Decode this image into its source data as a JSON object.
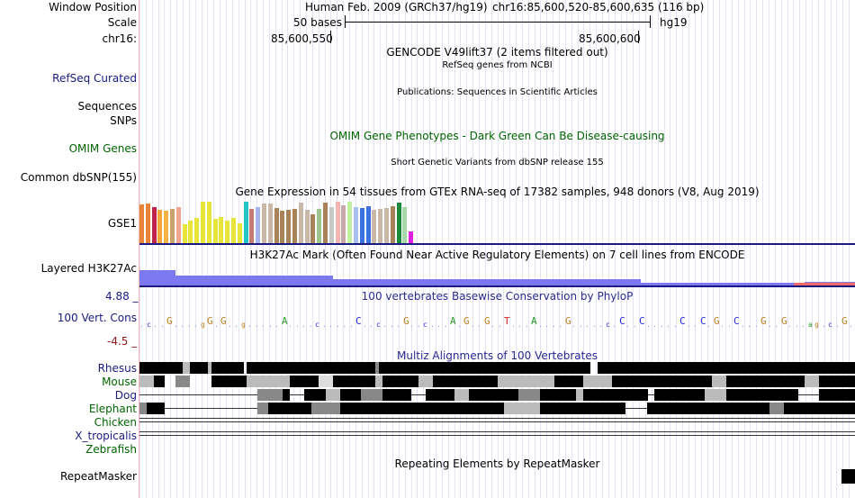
{
  "header": {
    "window_position_label": "Window Position",
    "scale_label": "Scale",
    "chrom_label": "chr16:",
    "assembly": "Human Feb. 2009 (GRCh37/hg19)",
    "position": "chr16:85,600,520-85,600,635 (116 bp)",
    "scale_text": "50 bases",
    "db": "hg19",
    "coord_left": "85,600,550",
    "coord_right": "85,600,600"
  },
  "tracks": {
    "gencode_title": "GENCODE V49lift37 (2 items filtered out)",
    "refseq_label": "RefSeq Curated",
    "refseq_title": "RefSeq genes from NCBI",
    "publications_title": "Publications: Sequences in Scientific Articles",
    "sequences_label": "Sequences",
    "snps_label": "SNPs",
    "omim_label": "OMIM Genes",
    "omim_title": "OMIM Gene Phenotypes - Dark Green Can Be Disease-causing",
    "dbsnp_title": "Short Genetic Variants from dbSNP release 155",
    "dbsnp_label": "Common dbSNP(155)",
    "gtex_title": "Gene Expression in 54 tissues from GTEx RNA-seq of 17382 samples, 948 donors (V8, Aug 2019)",
    "gtex_label": "GSE1",
    "h3k27ac_title": "H3K27Ac Mark (Often Found Near Active Regulatory Elements) on 7 cell lines from ENCODE",
    "h3k27ac_label": "Layered H3K27Ac",
    "cons_title": "100 vertebrates Basewise Conservation by PhyloP",
    "cons_label": "100 Vert. Cons",
    "cons_max": "4.88 _",
    "cons_min": "-4.5 _",
    "multiz_title": "Multiz Alignments of 100 Vertebrates",
    "species": [
      "Rhesus",
      "Mouse",
      "Dog",
      "Elephant",
      "Chicken",
      "X_tropicalis",
      "Zebrafish"
    ],
    "repeat_title": "Repeating Elements by RepeatMasker",
    "repeat_label": "RepeatMasker"
  },
  "colors": {
    "blue_label": "#1a1a80",
    "green_label": "#006400",
    "omim_green": "#006400",
    "h3k27ac_fill": "#7b78f0",
    "track_rule": "#1a1a80"
  },
  "gtex_bars": [
    {
      "value": 0.93,
      "color": "#e8843a"
    },
    {
      "value": 0.95,
      "color": "#e8843a"
    },
    {
      "value": 0.88,
      "color": "#c0224c"
    },
    {
      "value": 0.8,
      "color": "#f3a73b"
    },
    {
      "value": 0.78,
      "color": "#f5b344"
    },
    {
      "value": 0.83,
      "color": "#c9a36e"
    },
    {
      "value": 0.88,
      "color": "#f2a48e"
    },
    {
      "value": 0.45,
      "color": "#e8e53a"
    },
    {
      "value": 0.55,
      "color": "#e8e53a"
    },
    {
      "value": 0.6,
      "color": "#e8e53a"
    },
    {
      "value": 1.0,
      "color": "#e8e53a"
    },
    {
      "value": 1.0,
      "color": "#e8e53a"
    },
    {
      "value": 0.58,
      "color": "#e8e53a"
    },
    {
      "value": 0.62,
      "color": "#e8e53a"
    },
    {
      "value": 0.55,
      "color": "#e8e53a"
    },
    {
      "value": 0.6,
      "color": "#e8e53a"
    },
    {
      "value": 0.48,
      "color": "#e8e53a"
    },
    {
      "value": 1.0,
      "color": "#20c4c4"
    },
    {
      "value": 0.82,
      "color": "#c47a70"
    },
    {
      "value": 0.88,
      "color": "#a8b4f0"
    },
    {
      "value": 0.95,
      "color": "#c9b8a8"
    },
    {
      "value": 0.95,
      "color": "#c9b8a8"
    },
    {
      "value": 0.85,
      "color": "#a8835a"
    },
    {
      "value": 0.78,
      "color": "#a8835a"
    },
    {
      "value": 0.8,
      "color": "#a8835a"
    },
    {
      "value": 0.82,
      "color": "#a8835a"
    },
    {
      "value": 0.98,
      "color": "#c9b8a8"
    },
    {
      "value": 0.8,
      "color": "#c9b8a8"
    },
    {
      "value": 0.7,
      "color": "#a8835a"
    },
    {
      "value": 0.82,
      "color": "#9cc48c"
    },
    {
      "value": 0.98,
      "color": "#a8835a"
    },
    {
      "value": 0.88,
      "color": "#c8c8c8"
    },
    {
      "value": 1.0,
      "color": "#f4b4b4"
    },
    {
      "value": 0.92,
      "color": "#c8a8a8"
    },
    {
      "value": 1.0,
      "color": "#c0f0a0"
    },
    {
      "value": 0.88,
      "color": "#a8c0f0"
    },
    {
      "value": 0.85,
      "color": "#3a70e0"
    },
    {
      "value": 0.9,
      "color": "#3a70e0"
    },
    {
      "value": 0.8,
      "color": "#c9b8a8"
    },
    {
      "value": 0.82,
      "color": "#c9b8a8"
    },
    {
      "value": 0.84,
      "color": "#c9b8a8"
    },
    {
      "value": 0.9,
      "color": "#a8835a"
    },
    {
      "value": 0.98,
      "color": "#1a8a3a"
    },
    {
      "value": 0.86,
      "color": "#a8d8a8"
    },
    {
      "value": 0.28,
      "color": "#e020e0"
    }
  ],
  "h3k27ac_steps": [
    {
      "start": 0.0,
      "end": 0.05,
      "value": 0.9
    },
    {
      "start": 0.05,
      "end": 0.27,
      "value": 0.6
    },
    {
      "start": 0.27,
      "end": 0.7,
      "value": 0.4
    },
    {
      "start": 0.7,
      "end": 0.93,
      "value": 0.2
    },
    {
      "start": 0.93,
      "end": 1.0,
      "value": 0.25
    }
  ],
  "cons_letters": "-c--G----gG-G--g-----A----c-----C--c---G--c---A-G--G--T---A----G-----c-C--C-----C--C-G--C---G--G---ag-c-G-"
}
